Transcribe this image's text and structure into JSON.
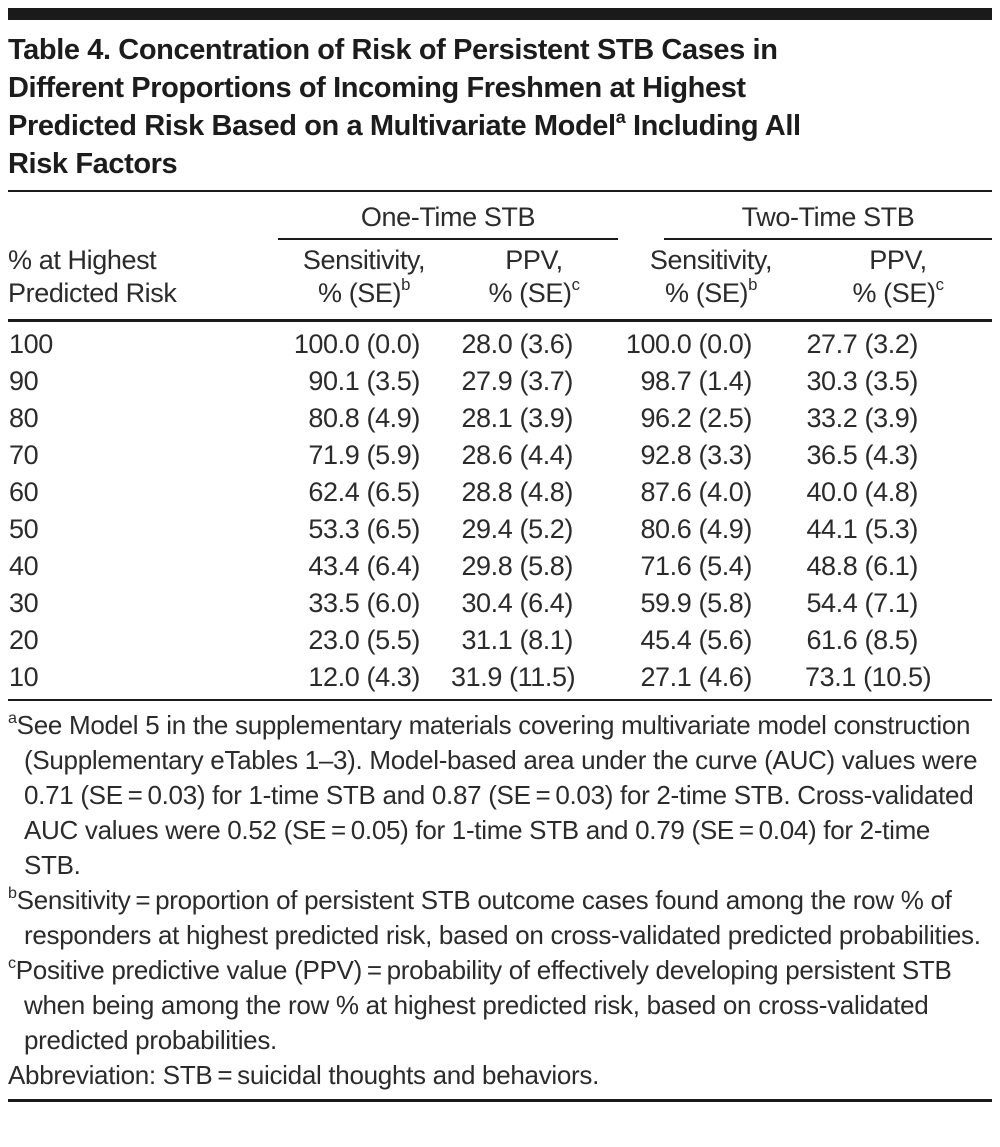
{
  "title": {
    "line1": "Table 4. Concentration of Risk of Persistent STB Cases in",
    "line2": "Different Proportions of Incoming Freshmen at Highest",
    "line3_pre": "Predicted Risk Based on a Multivariate Model",
    "line3_sup": "a",
    "line3_post": " Including All",
    "line4": "Risk Factors"
  },
  "table": {
    "stub_header_line1": "% at Highest",
    "stub_header_line2": "Predicted Risk",
    "group_headers": {
      "one_time": "One-Time STB",
      "two_time": "Two-Time STB"
    },
    "col_headers": {
      "sensitivity_line1": "Sensitivity,",
      "sensitivity_line2": "% (SE)",
      "sensitivity_sup": "b",
      "ppv_line1": "PPV,",
      "ppv_line2": "% (SE)",
      "ppv_sup": "c"
    },
    "rows": [
      [
        "100",
        "100.0 (0.0)",
        "28.0 (3.6)",
        "100.0 (0.0)",
        "27.7 (3.2)"
      ],
      [
        "90",
        "90.1 (3.5)",
        "27.9 (3.7)",
        "98.7 (1.4)",
        "30.3 (3.5)"
      ],
      [
        "80",
        "80.8 (4.9)",
        "28.1 (3.9)",
        "96.2 (2.5)",
        "33.2 (3.9)"
      ],
      [
        "70",
        "71.9 (5.9)",
        "28.6 (4.4)",
        "92.8 (3.3)",
        "36.5 (4.3)"
      ],
      [
        "60",
        "62.4 (6.5)",
        "28.8 (4.8)",
        "87.6 (4.0)",
        "40.0 (4.8)"
      ],
      [
        "50",
        "53.3 (6.5)",
        "29.4 (5.2)",
        "80.6 (4.9)",
        "44.1 (5.3)"
      ],
      [
        "40",
        "43.4 (6.4)",
        "29.8 (5.8)",
        "71.6 (5.4)",
        "48.8 (6.1)"
      ],
      [
        "30",
        "33.5 (6.0)",
        "30.4 (6.4)",
        "59.9 (5.8)",
        "54.4 (7.1)"
      ],
      [
        "20",
        "23.0 (5.5)",
        "31.1 (8.1)",
        "45.4 (5.6)",
        "61.6 (8.5)"
      ],
      [
        "10",
        "12.0 (4.3)",
        "31.9 (11.5)",
        "27.1 (4.6)",
        "73.1 (10.5)"
      ]
    ]
  },
  "footnotes": {
    "a": {
      "marker": "a",
      "text": "See Model 5 in the supplementary materials covering multivariate model construction (Supplementary eTables 1–3). Model-based area under the curve (AUC) values were 0.71 (SE = 0.03) for 1-time STB and 0.87 (SE = 0.03) for 2-time STB. Cross-validated AUC values were 0.52 (SE = 0.05) for 1-time STB and 0.79 (SE = 0.04) for 2-time STB."
    },
    "b": {
      "marker": "b",
      "text": "Sensitivity = proportion of persistent STB outcome cases found among the row % of responders at highest predicted risk, based on cross-validated predicted probabilities."
    },
    "c": {
      "marker": "c",
      "text": "Positive predictive value (PPV) = probability of effectively developing persistent STB when being among the row % at highest predicted risk, based on cross-validated predicted probabilities."
    },
    "abbreviation": "Abbreviation: STB = suicidal thoughts and behaviors."
  },
  "colors": {
    "text": "#2b2b2b",
    "rules": "#1a1a1a",
    "background": "#ffffff"
  }
}
